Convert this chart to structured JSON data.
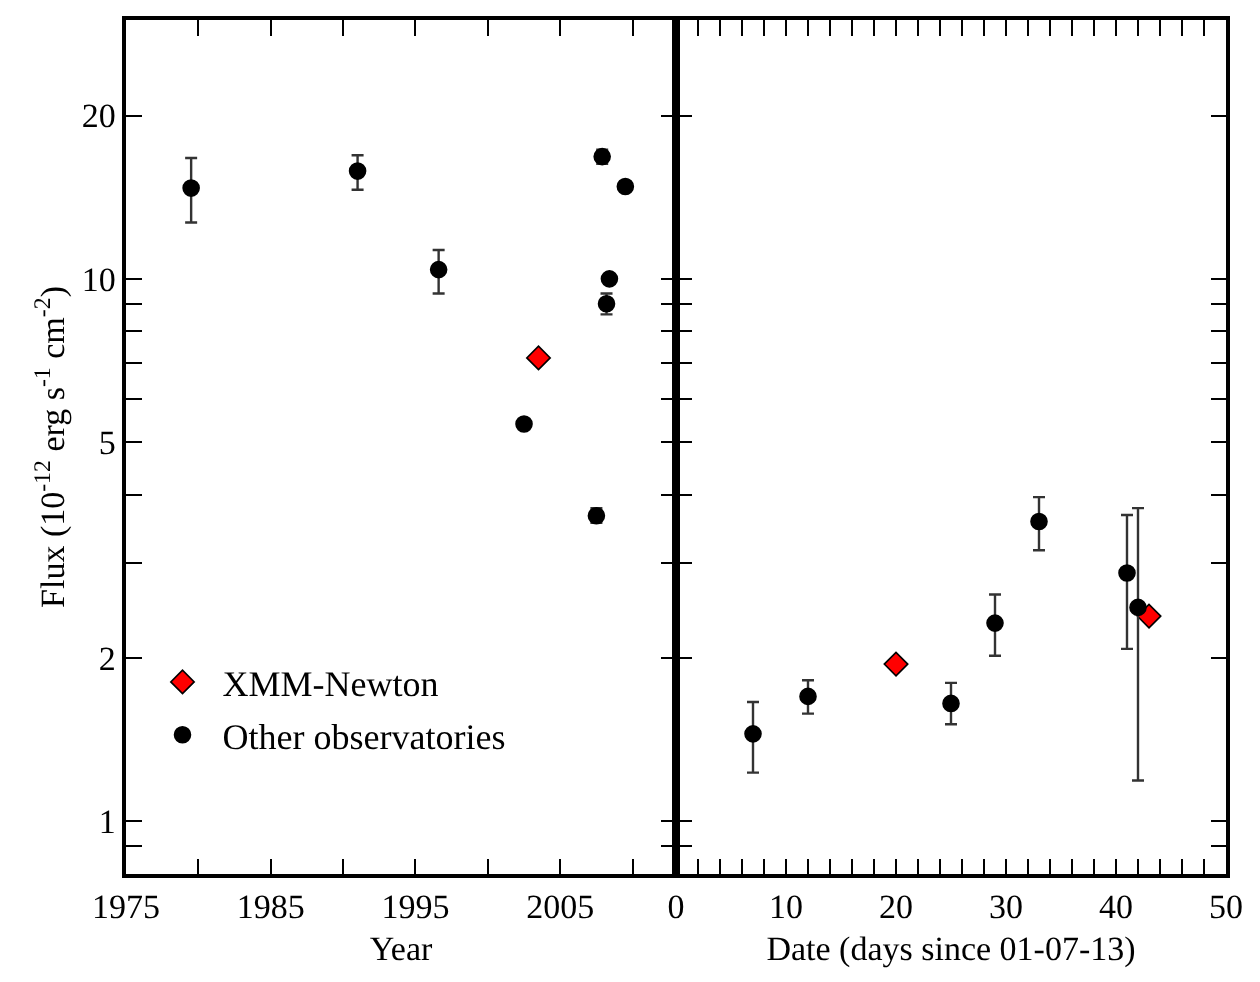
{
  "chart_data": [
    {
      "type": "scatter",
      "xlabel": "Year",
      "ylabel": "Flux (10$^{-12}$ erg s$^{-1}$ cm$^{-2}$)",
      "log": "y",
      "xlim": [
        1975,
        2013
      ],
      "ylim": [
        0.8,
        30
      ],
      "xticks": [
        1975,
        {
          "value": 1980,
          "label": null
        },
        1985,
        {
          "value": 1990,
          "label": null
        },
        1995,
        {
          "value": 2000,
          "label": null
        },
        2005,
        {
          "value": 2010,
          "label": null
        }
      ],
      "yticks": [
        {
          "value": 0.9,
          "label": null
        },
        1,
        2,
        {
          "value": 3,
          "label": null
        },
        {
          "value": 4,
          "label": null
        },
        5,
        {
          "value": 6,
          "label": null
        },
        {
          "value": 7,
          "label": null
        },
        {
          "value": 8,
          "label": null
        },
        {
          "value": 9,
          "label": null
        },
        10,
        20
      ],
      "legend": "bottom left",
      "series": [
        {
          "name": "XMM-Newton",
          "color": "#ff0000",
          "marker": "diamond",
          "x": [
            2003.5
          ],
          "values": [
            7.15
          ],
          "errors": [
            null
          ]
        },
        {
          "name": "Other observatories",
          "color": "#000000",
          "marker": "circle",
          "x": [
            1979.5,
            1991.0,
            1996.6,
            2002.5,
            2007.5,
            2007.9,
            2008.2,
            2008.4,
            2009.5
          ],
          "values": [
            14.7,
            15.8,
            10.4,
            5.4,
            3.66,
            16.8,
            9.0,
            10.0,
            14.8
          ],
          "errors": [
            [
              12.7,
              16.7
            ],
            [
              14.6,
              16.9
            ],
            [
              9.4,
              11.3
            ],
            null,
            [
              3.55,
              3.78
            ],
            [
              16.3,
              17.3
            ],
            [
              8.6,
              9.4
            ],
            null,
            null
          ]
        }
      ]
    },
    {
      "type": "scatter",
      "xlabel": "Date (days since 01-07-13)",
      "log": "y",
      "xlim": [
        0,
        50
      ],
      "ylim": [
        0.8,
        30
      ],
      "tick_labels": "x",
      "xticks": [
        0,
        {
          "value": 2,
          "label": null
        },
        {
          "value": 4,
          "label": null
        },
        {
          "value": 6,
          "label": null
        },
        {
          "value": 8,
          "label": null
        },
        10,
        {
          "value": 12,
          "label": null
        },
        {
          "value": 14,
          "label": null
        },
        {
          "value": 16,
          "label": null
        },
        {
          "value": 18,
          "label": null
        },
        20,
        {
          "value": 22,
          "label": null
        },
        {
          "value": 24,
          "label": null
        },
        {
          "value": 26,
          "label": null
        },
        {
          "value": 28,
          "label": null
        },
        30,
        {
          "value": 32,
          "label": null
        },
        {
          "value": 34,
          "label": null
        },
        {
          "value": 36,
          "label": null
        },
        {
          "value": 38,
          "label": null
        },
        40,
        {
          "value": 42,
          "label": null
        },
        {
          "value": 44,
          "label": null
        },
        {
          "value": 46,
          "label": null
        },
        {
          "value": 48,
          "label": null
        },
        50
      ],
      "yticks": [
        {
          "value": 0.9,
          "label": null
        },
        {
          "value": 1,
          "label": null
        },
        {
          "value": 2,
          "label": null
        },
        {
          "value": 3,
          "label": null
        },
        {
          "value": 4,
          "label": null
        },
        {
          "value": 5,
          "label": null
        },
        {
          "value": 6,
          "label": null
        },
        {
          "value": 7,
          "label": null
        },
        {
          "value": 8,
          "label": null
        },
        {
          "value": 9,
          "label": null
        },
        {
          "value": 10,
          "label": null
        },
        {
          "value": 20,
          "label": null
        }
      ],
      "legend": false,
      "series": [
        {
          "color": "#ff0000",
          "marker": "diamond",
          "x": [
            20,
            43
          ],
          "values": [
            1.95,
            2.39
          ],
          "errors": [
            null,
            null
          ]
        },
        {
          "color": "#000000",
          "marker": "circle",
          "x": [
            7,
            12,
            25,
            29,
            33,
            41,
            42
          ],
          "values": [
            1.45,
            1.7,
            1.65,
            2.32,
            3.57,
            2.87,
            2.48
          ],
          "errors": [
            [
              1.23,
              1.66
            ],
            [
              1.58,
              1.82
            ],
            [
              1.51,
              1.8
            ],
            [
              2.02,
              2.62
            ],
            [
              3.16,
              3.96
            ],
            [
              2.08,
              3.67
            ],
            [
              1.19,
              3.78
            ]
          ]
        }
      ]
    }
  ]
}
